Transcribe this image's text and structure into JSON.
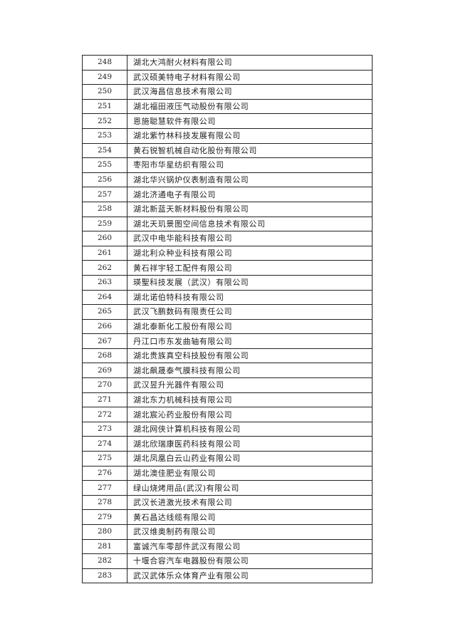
{
  "table": {
    "rows": [
      {
        "no": "248",
        "name": "湖北大鸿耐火材料有限公司"
      },
      {
        "no": "249",
        "name": "武汉硕美特电子材料有限公司"
      },
      {
        "no": "250",
        "name": "武汉海昌信息技术有限公司"
      },
      {
        "no": "251",
        "name": "湖北福田液压气动股份有限公司"
      },
      {
        "no": "252",
        "name": "恩施聪慧软件有限公司"
      },
      {
        "no": "253",
        "name": "湖北紫竹林科技发展有限公司"
      },
      {
        "no": "254",
        "name": "黄石锐智机械自动化股份有限公司"
      },
      {
        "no": "255",
        "name": "枣阳市华星纺织有限公司"
      },
      {
        "no": "256",
        "name": "湖北华兴锅炉仪表制造有限公司"
      },
      {
        "no": "257",
        "name": "湖北济通电子有限公司"
      },
      {
        "no": "258",
        "name": "湖北新蓝天新材料股份有限公司"
      },
      {
        "no": "259",
        "name": "湖北天玑景图空间信息技术有限公司"
      },
      {
        "no": "260",
        "name": "武汉中电华能科技有限公司"
      },
      {
        "no": "261",
        "name": "湖北利众种业科技有限公司"
      },
      {
        "no": "262",
        "name": "黄石祥宇轻工配件有限公司"
      },
      {
        "no": "263",
        "name": "瑛聖科技发展（武汉）有限公司"
      },
      {
        "no": "264",
        "name": "湖北诺伯特科技有限公司"
      },
      {
        "no": "265",
        "name": "武汉飞鹏数码有限责任公司"
      },
      {
        "no": "266",
        "name": "湖北泰新化工股份有限公司"
      },
      {
        "no": "267",
        "name": "丹江口市东发曲轴有限公司"
      },
      {
        "no": "268",
        "name": "湖北贵族真空科技股份有限公司"
      },
      {
        "no": "269",
        "name": "湖北飙晟泰气膜科技有限公司"
      },
      {
        "no": "270",
        "name": "武汉昱升光器件有限公司"
      },
      {
        "no": "271",
        "name": "湖北东力机械科技有限公司"
      },
      {
        "no": "272",
        "name": "湖北宸沁药业股份有限公司"
      },
      {
        "no": "273",
        "name": "湖北网侠计算机科技有限公司"
      },
      {
        "no": "274",
        "name": "湖北欣瑞康医药科技有限公司"
      },
      {
        "no": "275",
        "name": "湖北凤凰白云山药业有限公司"
      },
      {
        "no": "276",
        "name": "湖北澳佳肥业有限公司"
      },
      {
        "no": "277",
        "name": "绿山烧烤用品(武汉)有限公司"
      },
      {
        "no": "278",
        "name": "武汉长进激光技术有限公司"
      },
      {
        "no": "279",
        "name": "黄石昌达线缆有限公司"
      },
      {
        "no": "280",
        "name": "武汉维奥制药有限公司"
      },
      {
        "no": "281",
        "name": "富诚汽车零部件武汉有限公司"
      },
      {
        "no": "282",
        "name": "十堰合容汽车电器股份有限公司"
      },
      {
        "no": "283",
        "name": "武汉武体乐众体育产业有限公司"
      }
    ]
  }
}
